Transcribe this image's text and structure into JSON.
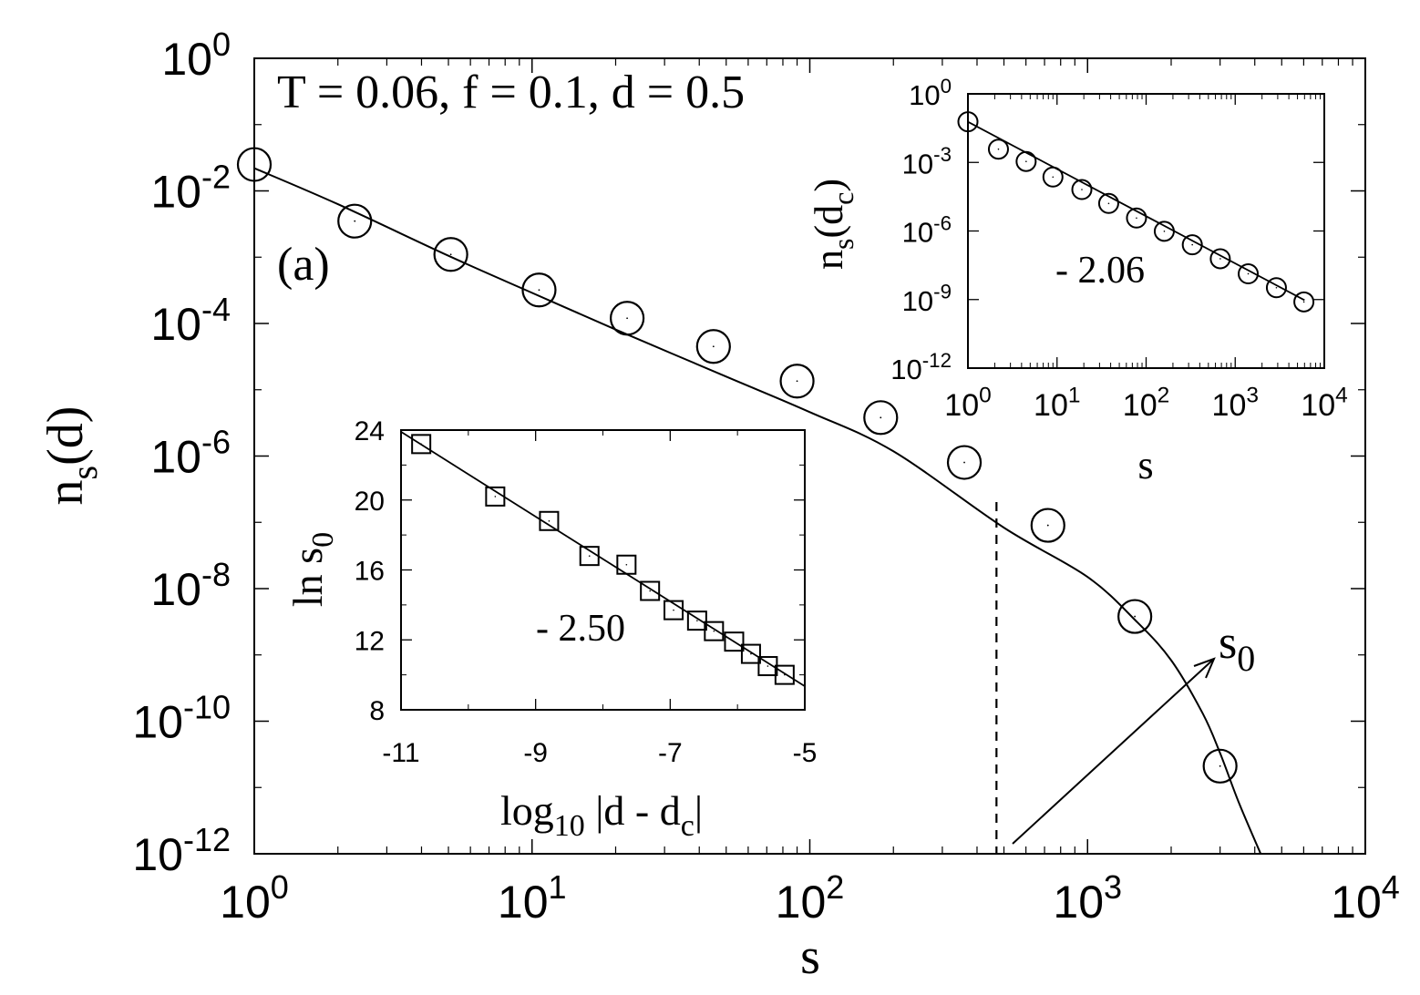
{
  "chart_data": [
    {
      "id": "main",
      "type": "scatter",
      "x_scale": "log",
      "y_scale": "log",
      "xlabel": "s",
      "ylabel_main": "n",
      "ylabel_sub": "s",
      "ylabel_tail": "(d)",
      "annotation": "T = 0.06, f = 0.1, d = 0.5",
      "panel_label": "(a)",
      "arrow_label_main": "s",
      "arrow_label_sub": "0",
      "xlim": [
        1,
        10000
      ],
      "ylim": [
        1e-12,
        1
      ],
      "x_ticks": [
        {
          "value": 1,
          "base": "10",
          "exp": "0"
        },
        {
          "value": 10,
          "base": "10",
          "exp": "1"
        },
        {
          "value": 100,
          "base": "10",
          "exp": "2"
        },
        {
          "value": 1000,
          "base": "10",
          "exp": "3"
        },
        {
          "value": 10000,
          "base": "10",
          "exp": "4"
        }
      ],
      "y_ticks": [
        {
          "value": 1,
          "base": "10",
          "exp": "0"
        },
        {
          "value": 0.01,
          "base": "10",
          "exp": "-2"
        },
        {
          "value": 0.0001,
          "base": "10",
          "exp": "-4"
        },
        {
          "value": 1e-06,
          "base": "10",
          "exp": "-6"
        },
        {
          "value": 1e-08,
          "base": "10",
          "exp": "-8"
        },
        {
          "value": 1e-10,
          "base": "10",
          "exp": "-10"
        },
        {
          "value": 1e-12,
          "base": "10",
          "exp": "-12"
        }
      ],
      "series": [
        {
          "marker": "circle",
          "points": [
            [
              1,
              0.025
            ],
            [
              2.3,
              0.0035
            ],
            [
              5.1,
              0.0011
            ],
            [
              10.6,
              0.00032
            ],
            [
              22,
              0.00012
            ],
            [
              45,
              4.5e-05
            ],
            [
              90,
              1.35e-05
            ],
            [
              180,
              3.8e-06
            ],
            [
              360,
              8e-07
            ],
            [
              720,
              9e-08
            ],
            [
              1480,
              3.8e-09
            ],
            [
              3000,
              2.1e-11
            ]
          ]
        }
      ],
      "fit_curve": [
        [
          1,
          0.022
        ],
        [
          2,
          0.0063
        ],
        [
          5,
          0.00105
        ],
        [
          10,
          0.00029
        ],
        [
          20,
          8.1e-05
        ],
        [
          50,
          1.58e-05
        ],
        [
          100,
          4.6e-06
        ],
        [
          200,
          1.18e-06
        ],
        [
          500,
          8.3e-08
        ],
        [
          1000,
          1.5e-08
        ],
        [
          1500,
          3.2e-09
        ],
        [
          2000,
          8.3e-10
        ],
        [
          2600,
          1.3e-10
        ],
        [
          3000,
          3.3e-11
        ],
        [
          3500,
          6e-12
        ],
        [
          4200,
          1e-12
        ]
      ],
      "s0_marker_x": 470
    },
    {
      "id": "inset-top-right",
      "type": "scatter",
      "x_scale": "log",
      "y_scale": "log",
      "xlabel": "s",
      "ylabel_main": "n",
      "ylabel_sub": "s",
      "ylabel_tail": "(d",
      "ylabel_sub2": "c",
      "ylabel_close": ")",
      "slope_label": "- 2.06",
      "xlim": [
        1,
        10000
      ],
      "ylim": [
        1e-12,
        1
      ],
      "x_ticks": [
        {
          "value": 1,
          "base": "10",
          "exp": "0"
        },
        {
          "value": 10,
          "base": "10",
          "exp": "1"
        },
        {
          "value": 100,
          "base": "10",
          "exp": "2"
        },
        {
          "value": 1000,
          "base": "10",
          "exp": "3"
        },
        {
          "value": 10000,
          "base": "10",
          "exp": "4"
        }
      ],
      "y_ticks": [
        {
          "value": 1,
          "base": "10",
          "exp": "0"
        },
        {
          "value": 0.001,
          "base": "10",
          "exp": "-3"
        },
        {
          "value": 1e-06,
          "base": "10",
          "exp": "-6"
        },
        {
          "value": 1e-09,
          "base": "10",
          "exp": "-9"
        },
        {
          "value": 1e-12,
          "base": "10",
          "exp": "-12"
        }
      ],
      "series": [
        {
          "marker": "circle",
          "points": [
            [
              1,
              0.06
            ],
            [
              2.2,
              0.0038
            ],
            [
              4.5,
              0.0011
            ],
            [
              9,
              0.00023
            ],
            [
              19,
              6.5e-05
            ],
            [
              38,
              1.6e-05
            ],
            [
              78,
              3.7e-06
            ],
            [
              160,
              9.7e-07
            ],
            [
              330,
              2.5e-07
            ],
            [
              680,
              6.1e-08
            ],
            [
              1400,
              1.34e-08
            ],
            [
              2900,
              3.3e-09
            ],
            [
              5900,
              7.9e-10
            ]
          ]
        }
      ],
      "fit_line": [
        [
          1,
          0.06
        ],
        [
          6000,
          9.4e-10
        ]
      ]
    },
    {
      "id": "inset-bottom-left",
      "type": "scatter",
      "x_scale": "linear",
      "y_scale": "linear",
      "xlabel_main": "log",
      "xlabel_sub": "10",
      "xlabel_mid": " |d - d",
      "xlabel_sub2": "c",
      "xlabel_close": "|",
      "ylabel_main": "ln s",
      "ylabel_sub": "0",
      "slope_label": "- 2.50",
      "xlim": [
        -11,
        -5
      ],
      "ylim": [
        8,
        24
      ],
      "x_ticks": [
        -11,
        -9,
        -7,
        -5
      ],
      "y_ticks": [
        8,
        12,
        16,
        20,
        24
      ],
      "series": [
        {
          "marker": "square",
          "points": [
            [
              -10.7,
              23.2
            ],
            [
              -9.6,
              20.2
            ],
            [
              -8.8,
              18.8
            ],
            [
              -8.2,
              16.8
            ],
            [
              -7.65,
              16.3
            ],
            [
              -7.3,
              14.8
            ],
            [
              -6.95,
              13.7
            ],
            [
              -6.6,
              13.1
            ],
            [
              -6.35,
              12.5
            ],
            [
              -6.05,
              11.9
            ],
            [
              -5.8,
              11.2
            ],
            [
              -5.55,
              10.5
            ],
            [
              -5.3,
              10.0
            ]
          ]
        }
      ],
      "fit_line": [
        [
          -11,
          23.9
        ],
        [
          -5,
          9.35
        ]
      ]
    }
  ]
}
